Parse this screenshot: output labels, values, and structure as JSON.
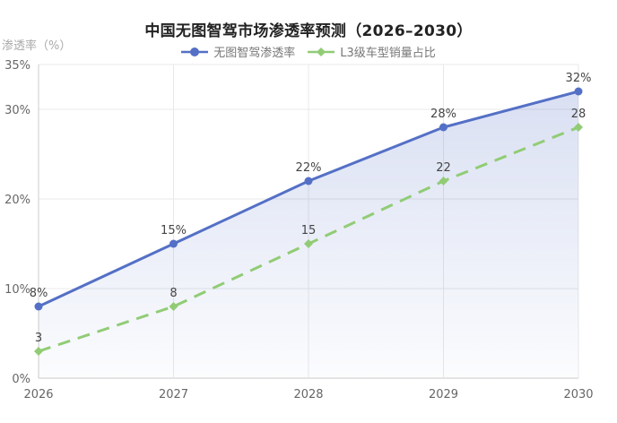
{
  "chart_data": {
    "type": "line",
    "title": "中国无图智驾市场渗透率预测（2026–2030）",
    "xlabel": "",
    "ylabel": "渗透率（%）",
    "categories": [
      "2026",
      "2027",
      "2028",
      "2029",
      "2030"
    ],
    "y_ticks": [
      "0%",
      "10%",
      "20%",
      "30%",
      "35%"
    ],
    "ylim": [
      0,
      35
    ],
    "grid": true,
    "legend_position": "top",
    "series": [
      {
        "name": "无图智驾渗透率",
        "values": [
          8,
          15,
          22,
          28,
          32
        ],
        "labels": [
          "8%",
          "15%",
          "22%",
          "28%",
          "32%"
        ],
        "color": "#5470c6",
        "style": "solid",
        "marker": "circle",
        "area_fill": true
      },
      {
        "name": "L3级车型销量占比",
        "values": [
          3,
          8,
          15,
          22,
          28
        ],
        "labels": [
          "3",
          "8",
          "15",
          "22",
          "28"
        ],
        "color": "#91cc75",
        "style": "dashed",
        "marker": "diamond"
      }
    ]
  }
}
